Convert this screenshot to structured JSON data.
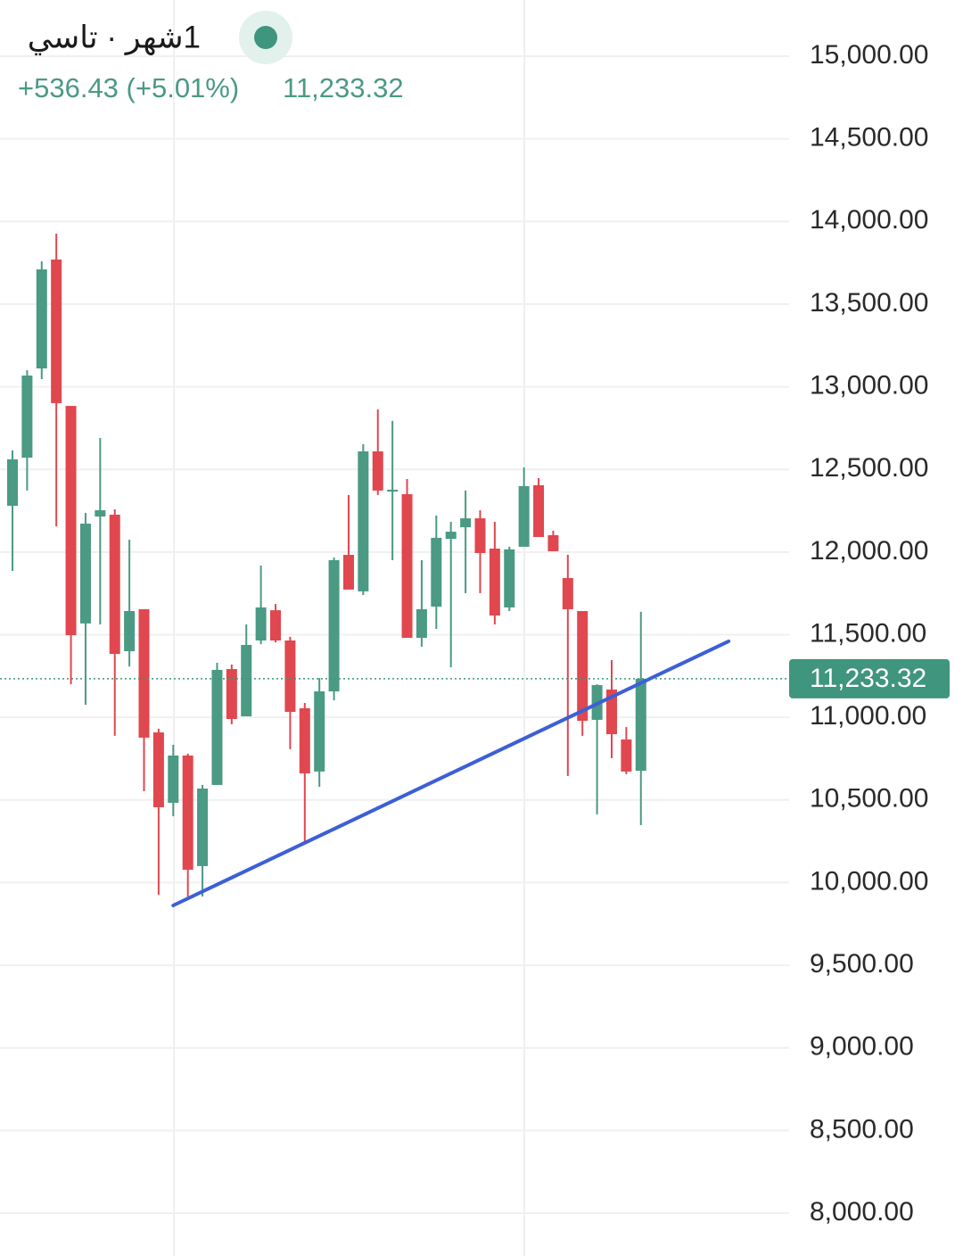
{
  "chart_data": {
    "type": "candlestick",
    "title": "1شهر · تاسي",
    "change": "+536.43 (+5.01%)",
    "last_price": 11233.32,
    "last_price_label": "11,233.32",
    "up_color": "#4a9a84",
    "down_color": "#e0474f",
    "trendline_color": "#3d5fd6",
    "ylim": [
      7741,
      15340
    ],
    "yticks": [
      {
        "value": 15000,
        "label": "15,000.00"
      },
      {
        "value": 14500,
        "label": "14,500.00"
      },
      {
        "value": 14000,
        "label": "14,000.00"
      },
      {
        "value": 13500,
        "label": "13,500.00"
      },
      {
        "value": 13000,
        "label": "13,000.00"
      },
      {
        "value": 12500,
        "label": "12,500.00"
      },
      {
        "value": 12000,
        "label": "12,000.00"
      },
      {
        "value": 11500,
        "label": "11,500.00"
      },
      {
        "value": 11000,
        "label": "11,000.00"
      },
      {
        "value": 10500,
        "label": "10,500.00"
      },
      {
        "value": 10000,
        "label": "10,000.00"
      },
      {
        "value": 9500,
        "label": "9,500.00"
      },
      {
        "value": 9000,
        "label": "9,000.00"
      },
      {
        "value": 8500,
        "label": "8,500.00"
      },
      {
        "value": 8000,
        "label": "8,000.00"
      }
    ],
    "grid": true,
    "open": [
      12280,
      12571,
      13111,
      13770,
      12884,
      11568,
      12215,
      12226,
      11400,
      11654,
      10909,
      10483,
      10769,
      10100,
      10591,
      11292,
      11006,
      11465,
      11648,
      11465,
      11055,
      10672,
      11157,
      11983,
      11762,
      12609,
      12366,
      12350,
      11481,
      11670,
      12080,
      12150,
      12204,
      12021,
      11665,
      12032,
      12404,
      12102,
      11843,
      11643,
      10985,
      11168,
      10866,
      10677
    ],
    "high": [
      12615,
      13100,
      13759,
      13926,
      12884,
      12237,
      12690,
      12258,
      12075,
      11654,
      10931,
      10834,
      10780,
      10591,
      11330,
      11319,
      11562,
      11918,
      11686,
      11487,
      11087,
      11238,
      11967,
      12345,
      12652,
      12863,
      12793,
      12442,
      11951,
      12221,
      12183,
      12372,
      12253,
      12183,
      12032,
      12512,
      12447,
      12129,
      11983,
      11643,
      11200,
      11346,
      10941,
      11638
    ],
    "low": [
      11886,
      12372,
      13046,
      12156,
      11200,
      11076,
      11562,
      10888,
      11308,
      10553,
      9927,
      10402,
      9916,
      9916,
      10591,
      10958,
      11006,
      11443,
      11454,
      10807,
      10240,
      10580,
      11103,
      11773,
      11740,
      12345,
      11951,
      11481,
      11427,
      11535,
      11303,
      11751,
      11751,
      11562,
      11643,
      12032,
      12091,
      12005,
      10645,
      10888,
      10413,
      10753,
      10656,
      10348
    ],
    "close": [
      12561,
      13068,
      13710,
      12901,
      11497,
      12172,
      12253,
      11384,
      11643,
      10877,
      10456,
      10769,
      10078,
      10569,
      11287,
      10990,
      11438,
      11665,
      11465,
      11033,
      10661,
      11157,
      11951,
      11773,
      12609,
      12372,
      12377,
      11481,
      11654,
      12086,
      12123,
      12204,
      11994,
      11616,
      12016,
      12399,
      12091,
      12005,
      11654,
      10979,
      11195,
      10898,
      10672,
      11233.32
    ],
    "trendline": {
      "start": [
        11,
        9862
      ],
      "end": [
        49,
        11460
      ]
    }
  }
}
